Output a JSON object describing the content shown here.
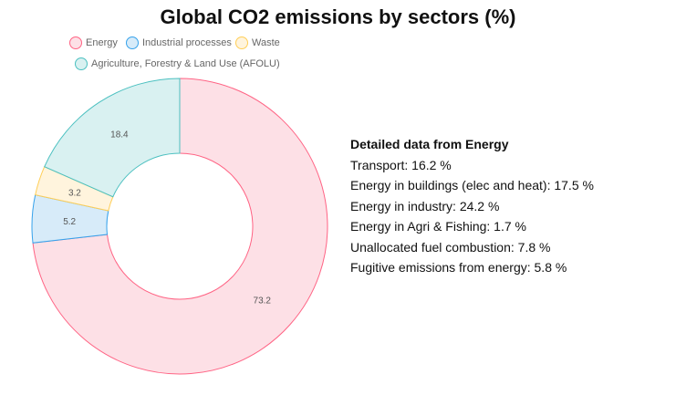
{
  "chart_data": {
    "type": "doughnut",
    "title": "Global CO2 emissions by sectors (%)",
    "legend_position": "top-left",
    "series": [
      {
        "name": "Energy",
        "value": 73.2,
        "fill": "#fde0e6",
        "stroke": "#ff6384"
      },
      {
        "name": "Industrial processes",
        "value": 5.2,
        "fill": "#d7ebf9",
        "stroke": "#36a2eb"
      },
      {
        "name": "Waste",
        "value": 3.2,
        "fill": "#fff4dd",
        "stroke": "#ffce56"
      },
      {
        "name": "Agriculture, Forestry & Land Use (AFOLU)",
        "value": 18.4,
        "fill": "#d9f1f1",
        "stroke": "#4bc0c0"
      }
    ]
  },
  "details": {
    "heading": "Detailed data from Energy",
    "items": [
      "Transport: 16.2 %",
      "Energy in buildings (elec and heat): 17.5 %",
      "Energy in industry: 24.2 %",
      "Energy in Agri & Fishing: 1.7 %",
      "Unallocated fuel combustion: 7.8 %",
      "Fugitive emissions from energy: 5.8 %"
    ]
  }
}
